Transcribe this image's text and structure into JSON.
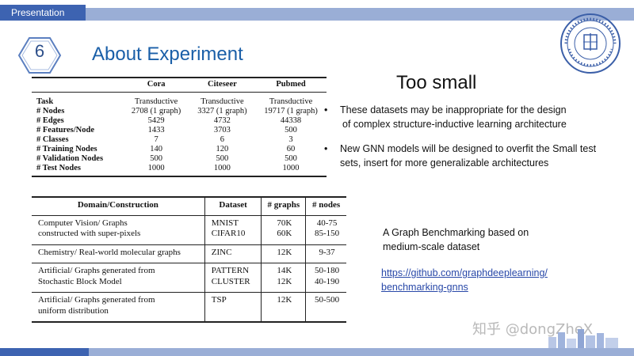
{
  "header": {
    "tag": "Presentation"
  },
  "slide": {
    "number": "6",
    "title": "About Experiment"
  },
  "table1": {
    "headers": [
      "",
      "Cora",
      "Citeseer",
      "Pubmed"
    ],
    "rows": [
      [
        "Task",
        "Transductive",
        "Transductive",
        "Transductive"
      ],
      [
        "# Nodes",
        "2708 (1 graph)",
        "3327 (1 graph)",
        "19717 (1 graph)"
      ],
      [
        "# Edges",
        "5429",
        "4732",
        "44338"
      ],
      [
        "# Features/Node",
        "1433",
        "3703",
        "500"
      ],
      [
        "# Classes",
        "7",
        "6",
        "3"
      ],
      [
        "# Training Nodes",
        "140",
        "120",
        "60"
      ],
      [
        "# Validation Nodes",
        "500",
        "500",
        "500"
      ],
      [
        "# Test Nodes",
        "1000",
        "1000",
        "1000"
      ]
    ]
  },
  "table2": {
    "headers": [
      "Domain/Construction",
      "Dataset",
      "# graphs",
      "# nodes"
    ],
    "rows": [
      {
        "domain": [
          "Computer Vision/ Graphs",
          "constructed with super-pixels"
        ],
        "dataset": [
          "MNIST",
          "CIFAR10"
        ],
        "graphs": [
          "70K",
          "60K"
        ],
        "nodes": [
          "40-75",
          "85-150"
        ]
      },
      {
        "domain": [
          "Chemistry/ Real-world molecular graphs"
        ],
        "dataset": [
          "ZINC"
        ],
        "graphs": [
          "12K"
        ],
        "nodes": [
          "9-37"
        ]
      },
      {
        "domain": [
          "Artificial/ Graphs generated from",
          "Stochastic Block Model"
        ],
        "dataset": [
          "PATTERN",
          "CLUSTER"
        ],
        "graphs": [
          "14K",
          "12K"
        ],
        "nodes": [
          "50-180",
          "40-190"
        ]
      },
      {
        "domain": [
          "Artificial/ Graphs generated from",
          "uniform distribution"
        ],
        "dataset": [
          "TSP"
        ],
        "graphs": [
          "12K"
        ],
        "nodes": [
          "50-500"
        ]
      }
    ]
  },
  "right": {
    "heading": "Too small",
    "bullets": [
      [
        "These datasets may be inappropriate for the design",
        "of complex structure-inductive learning architecture"
      ],
      [
        "New GNN models will be designed to overfit the Small test",
        "sets, insert for more generalizable architectures"
      ]
    ],
    "benchmark": [
      "A Graph Benchmarking based on",
      "medium-scale dataset"
    ],
    "link": [
      "https://github.com/graphdeeplearning/",
      "benchmarking-gnns"
    ]
  },
  "watermark": "知乎 @dongZheX",
  "colors": {
    "accent": "#3d63b1",
    "title": "#1a5fa8",
    "band": "#9aaed6",
    "link": "#2848a8"
  }
}
